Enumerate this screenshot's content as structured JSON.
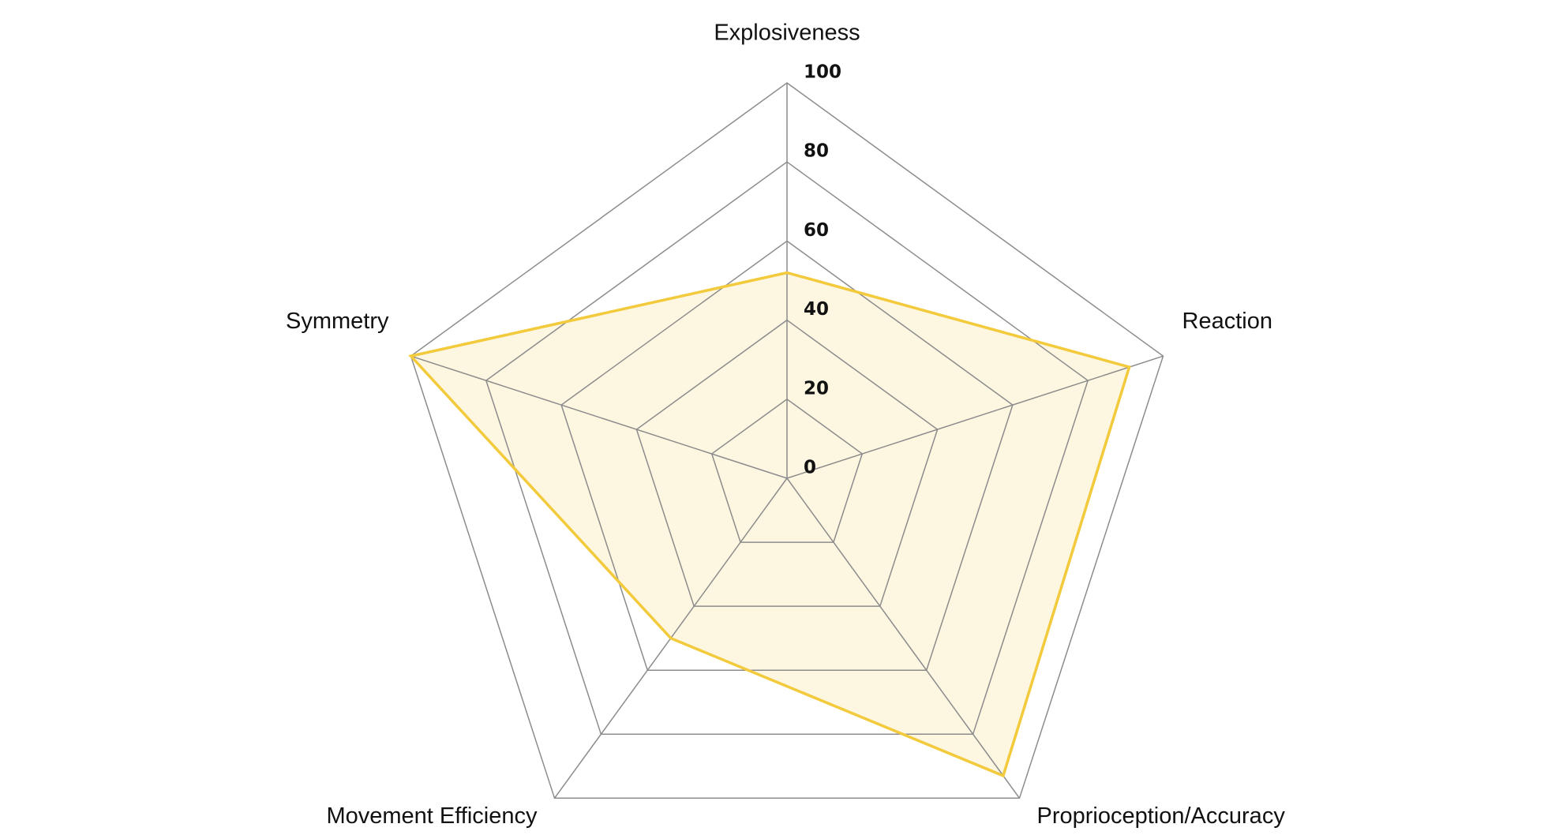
{
  "chart_data": {
    "type": "radar",
    "axes": [
      "Explosiveness",
      "Reaction",
      "Proprioception/Accuracy",
      "Movement Efficiency",
      "Symmetry"
    ],
    "series": [
      {
        "values": [
          52,
          91,
          93,
          50,
          100
        ]
      }
    ],
    "r_range": [
      0,
      100
    ],
    "r_ticks": [
      "0",
      "20",
      "40",
      "60",
      "80",
      "100"
    ],
    "grid": true,
    "legend": "none",
    "colors": {
      "series_stroke": "#f2ca3c",
      "series_fill": "#fdf6e1",
      "grid": "#8c8c8c",
      "text": "#111111"
    }
  }
}
